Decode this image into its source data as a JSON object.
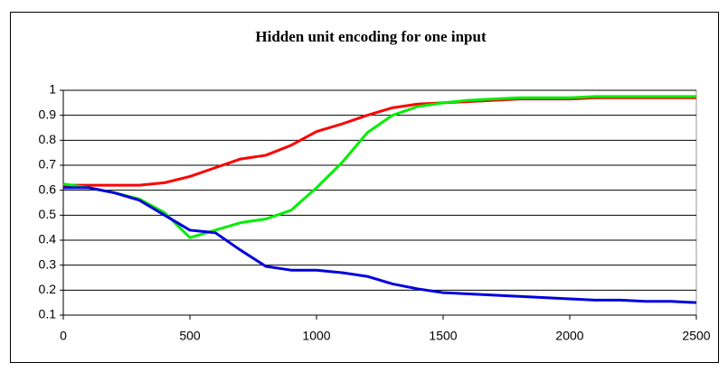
{
  "chart_data": {
    "type": "line",
    "title": "Hidden unit encoding for one input",
    "x": [
      0,
      100,
      200,
      300,
      400,
      500,
      600,
      700,
      800,
      900,
      1000,
      1100,
      1200,
      1300,
      1400,
      1500,
      1600,
      1700,
      1800,
      1900,
      2000,
      2100,
      2200,
      2300,
      2400,
      2500
    ],
    "series": [
      {
        "color": "#ff0000",
        "values": [
          0.62,
          0.62,
          0.62,
          0.62,
          0.63,
          0.655,
          0.69,
          0.725,
          0.74,
          0.78,
          0.835,
          0.865,
          0.9,
          0.93,
          0.945,
          0.95,
          0.955,
          0.96,
          0.965,
          0.965,
          0.965,
          0.97,
          0.97,
          0.97,
          0.97,
          0.97
        ]
      },
      {
        "color": "#00ee00",
        "values": [
          0.625,
          0.61,
          0.59,
          0.565,
          0.51,
          0.41,
          0.44,
          0.47,
          0.485,
          0.52,
          0.61,
          0.71,
          0.83,
          0.9,
          0.935,
          0.95,
          0.96,
          0.965,
          0.97,
          0.97,
          0.97,
          0.975,
          0.975,
          0.975,
          0.975,
          0.975
        ]
      },
      {
        "color": "#0000dd",
        "values": [
          0.61,
          0.61,
          0.59,
          0.56,
          0.5,
          0.44,
          0.43,
          0.36,
          0.295,
          0.28,
          0.28,
          0.27,
          0.255,
          0.225,
          0.205,
          0.19,
          0.185,
          0.18,
          0.175,
          0.17,
          0.165,
          0.16,
          0.16,
          0.155,
          0.155,
          0.15
        ]
      }
    ],
    "xlim": [
      0,
      2500
    ],
    "xticks": [
      0,
      500,
      1000,
      1500,
      2000,
      2500
    ],
    "ylim": [
      0.1,
      1
    ],
    "yticks": [
      0.1,
      0.2,
      0.3,
      0.4,
      0.5,
      0.6,
      0.7,
      0.8,
      0.9,
      1
    ],
    "grid": true
  }
}
